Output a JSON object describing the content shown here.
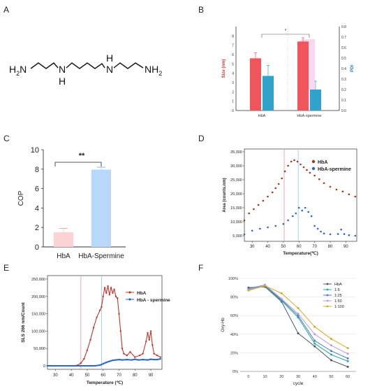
{
  "panel_letters": [
    "A",
    "B",
    "C",
    "D",
    "E",
    "F"
  ],
  "molecule": {
    "groups": [
      "H",
      "2",
      "N",
      "N",
      "H",
      "H",
      "N",
      "NH",
      "2"
    ],
    "name": "spermine"
  },
  "chart_data": [
    {
      "panel": "B",
      "type": "bar",
      "categories": [
        "HbA",
        "HbA-spermine"
      ],
      "series": [
        {
          "name": "Size (nm)",
          "axis": "left",
          "values": [
            5.6,
            7.4
          ],
          "errors": [
            0.6,
            0.4
          ],
          "color": "#f0555c"
        },
        {
          "name": "PDI",
          "axis": "right",
          "values": [
            0.33,
            0.2
          ],
          "errors": [
            0.1,
            0.08
          ],
          "color": "#2fa3c9"
        }
      ],
      "ylabel": "Size (nm)",
      "y2label": "PDI",
      "ylim": [
        0,
        9
      ],
      "y2lim": [
        0,
        0.8
      ],
      "yticks": [
        "0",
        "1",
        "2",
        "3",
        "4",
        "5",
        "6",
        "7",
        "8"
      ],
      "y2ticks": [
        "0.0",
        "0.1",
        "0.2",
        "0.3",
        "0.4",
        "0.5",
        "0.6",
        "0.7",
        "0.8"
      ],
      "significance": "*"
    },
    {
      "panel": "C",
      "type": "bar",
      "categories": [
        "HbA",
        "HbA-Spermine"
      ],
      "values": [
        1.5,
        7.95
      ],
      "errors": [
        0.4,
        0.25
      ],
      "colors": [
        "#fbd3d3",
        "#b7d8fb"
      ],
      "ylabel": "COP",
      "ylim": [
        0,
        10
      ],
      "yticks": [
        "0",
        "2",
        "4",
        "6",
        "8",
        "10"
      ],
      "significance": "**"
    },
    {
      "panel": "D",
      "type": "scatter",
      "xlabel": "Temperature(℃)",
      "ylabel": "Area (counts.nm)",
      "xlim": [
        25,
        97
      ],
      "ylim": [
        3000,
        36000
      ],
      "xticks": [
        "30",
        "40",
        "50",
        "60",
        "70",
        "80",
        "90"
      ],
      "yticks": [
        "5,000",
        "10,000",
        "15,000",
        "20,000",
        "25,000",
        "30,000",
        "35,000"
      ],
      "legend": "top-right",
      "vlines": [
        {
          "x": 50.5,
          "color": "#e8a0b4"
        },
        {
          "x": 59.5,
          "color": "#9ccfe8"
        }
      ],
      "series": [
        {
          "name": "HbA",
          "color": "#a3341e",
          "x": [
            25,
            28,
            31,
            34,
            37,
            40,
            43,
            45,
            47,
            49,
            51,
            53,
            55,
            57,
            59,
            61,
            63,
            65,
            67,
            70,
            73,
            76,
            80,
            84,
            88,
            92,
            96
          ],
          "y": [
            10500,
            13000,
            14500,
            16000,
            17500,
            19000,
            20500,
            22000,
            23500,
            25500,
            28000,
            30000,
            31500,
            32000,
            31500,
            30500,
            29500,
            28500,
            27500,
            26500,
            25200,
            23800,
            22500,
            21500,
            20800,
            19800,
            19000
          ]
        },
        {
          "name": "HbA-spermine",
          "color": "#2a66c8",
          "x": [
            25,
            30,
            35,
            40,
            45,
            50,
            53,
            56,
            58,
            60,
            62,
            64,
            66,
            68,
            70,
            72,
            74,
            76,
            80,
            85,
            87,
            89,
            92,
            96
          ],
          "y": [
            5500,
            6800,
            7500,
            8000,
            8500,
            9200,
            10500,
            12000,
            13000,
            15000,
            14000,
            15000,
            13500,
            12000,
            8500,
            7500,
            6500,
            5800,
            5500,
            5600,
            7200,
            5600,
            5200,
            5000
          ]
        }
      ]
    },
    {
      "panel": "E",
      "type": "line",
      "xlabel": "Temperature (℃)",
      "ylabel": "SLS 266 nm/Count",
      "xlim": [
        25,
        97
      ],
      "ylim": [
        -10000,
        260000
      ],
      "xticks": [
        "30",
        "40",
        "50",
        "60",
        "70",
        "80",
        "90"
      ],
      "yticks": [
        "0",
        "50,000",
        "100,000",
        "150,000",
        "200,000",
        "250,000"
      ],
      "legend": "top-right",
      "vlines": [
        {
          "x": 46,
          "color": "#e8a0b4"
        },
        {
          "x": 59,
          "color": "#9ccfe8"
        }
      ],
      "series": [
        {
          "name": "HbA",
          "color": "#c0392b",
          "x": [
            25,
            40,
            44,
            46,
            48,
            50,
            52,
            54,
            56,
            58,
            59,
            60,
            61,
            62,
            63,
            64,
            65,
            66,
            67,
            68,
            69,
            70,
            71,
            72,
            73,
            75,
            77,
            80,
            83,
            85,
            87,
            88,
            89,
            90,
            91,
            92,
            94,
            96
          ],
          "y": [
            0,
            0,
            2000,
            8000,
            20000,
            45000,
            75000,
            110000,
            140000,
            160000,
            170000,
            200000,
            225000,
            210000,
            230000,
            205000,
            225000,
            210000,
            220000,
            200000,
            195000,
            150000,
            100000,
            50000,
            35000,
            30000,
            40000,
            25000,
            30000,
            35000,
            70000,
            95000,
            75000,
            100000,
            60000,
            35000,
            30000,
            25000
          ]
        },
        {
          "name": "HbA - spermine",
          "color": "#2a66c8",
          "x": [
            25,
            55,
            58,
            60,
            62,
            64,
            66,
            68,
            70,
            72,
            75,
            78,
            80,
            82,
            85,
            88,
            90,
            92,
            94,
            96
          ],
          "y": [
            0,
            0,
            2000,
            6000,
            10000,
            13000,
            16000,
            17000,
            18000,
            17000,
            18000,
            17000,
            19000,
            17000,
            18000,
            17000,
            19000,
            18000,
            18000,
            20000
          ]
        }
      ]
    },
    {
      "panel": "F",
      "type": "line",
      "xlabel": "cycle",
      "ylabel": "Oxy-Hb",
      "x": [
        0,
        10,
        20,
        30,
        40,
        50,
        60
      ],
      "xlim": [
        -5,
        65
      ],
      "ylim": [
        0,
        1.0
      ],
      "xticks": [
        "0",
        "10",
        "20",
        "30",
        "40",
        "50",
        "60"
      ],
      "yticks": [
        "0%",
        "20%",
        "40%",
        "60%",
        "80%",
        "100%"
      ],
      "legend": "top-right",
      "series": [
        {
          "name": "HbA",
          "color": "#4a5563",
          "values": [
            0.9,
            0.91,
            0.75,
            0.41,
            0.27,
            0.12,
            0.05
          ]
        },
        {
          "name": "1:5",
          "color": "#27a8a0",
          "values": [
            0.88,
            0.92,
            0.76,
            0.58,
            0.3,
            0.18,
            0.11
          ]
        },
        {
          "name": "1:25",
          "color": "#4a7fc0",
          "values": [
            0.89,
            0.93,
            0.77,
            0.6,
            0.33,
            0.22,
            0.14
          ]
        },
        {
          "name": "1:50",
          "color": "#b899e0",
          "values": [
            0.88,
            0.93,
            0.78,
            0.62,
            0.4,
            0.28,
            0.19
          ]
        },
        {
          "name": "1:100",
          "color": "#d7a81f",
          "values": [
            0.87,
            0.92,
            0.84,
            0.68,
            0.48,
            0.35,
            0.25
          ]
        }
      ]
    }
  ]
}
